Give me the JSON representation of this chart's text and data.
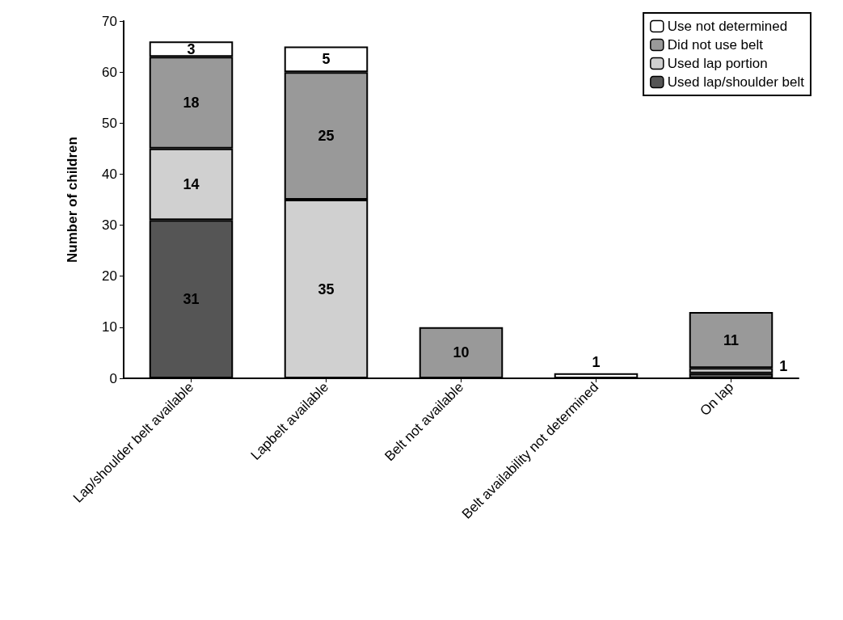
{
  "chart_data": {
    "type": "bar",
    "stacked": true,
    "ylabel": "Number of children",
    "categories": [
      "Lap/shoulder belt available",
      "Lapbelt available",
      "Belt not available",
      "Belt availability not determined",
      "On lap"
    ],
    "series": [
      {
        "name": "Used lap/shoulder belt",
        "color": "#555555",
        "values": [
          31,
          null,
          null,
          null,
          1
        ],
        "value_labels": [
          "31",
          null,
          null,
          null,
          "1"
        ]
      },
      {
        "name": "Used lap portion",
        "color": "#d0d0d0",
        "values": [
          14,
          35,
          null,
          null,
          1
        ],
        "value_labels": [
          "14",
          "35",
          null,
          null,
          null
        ]
      },
      {
        "name": "Did not use belt",
        "color": "#999999",
        "values": [
          18,
          25,
          10,
          null,
          11
        ],
        "value_labels": [
          "18",
          "25",
          "10",
          null,
          "11"
        ]
      },
      {
        "name": "Use not determined",
        "color": "#ffffff",
        "values": [
          3,
          5,
          null,
          1,
          null
        ],
        "value_labels": [
          "3",
          "5",
          null,
          "1",
          null
        ]
      }
    ],
    "ylim": [
      0,
      70
    ],
    "yticks": [
      0,
      10,
      20,
      30,
      40,
      50,
      60,
      70
    ],
    "grid": false,
    "legend": "top right"
  }
}
